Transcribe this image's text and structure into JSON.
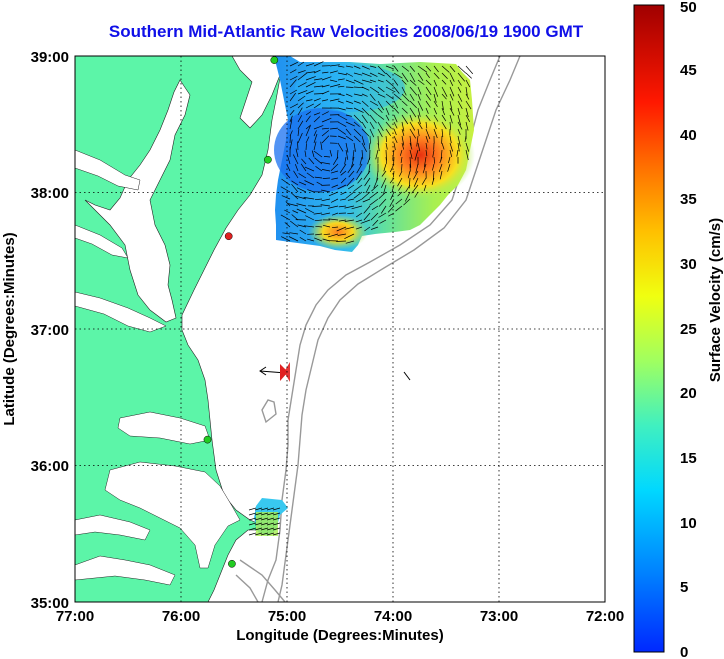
{
  "title": "Southern Mid-Atlantic Raw Velocities 2008/06/19 1900 GMT",
  "xlabel": "Longitude (Degrees:Minutes)",
  "ylabel": "Latitude (Degrees:Minutes)",
  "colorbar_label": "Surface Velocity (cm/s)",
  "x_ticks": [
    "77:00",
    "76:00",
    "75:00",
    "74:00",
    "73:00",
    "72:00"
  ],
  "y_ticks": [
    "39:00",
    "38:00",
    "37:00",
    "36:00",
    "35:00"
  ],
  "colorbar_ticks": [
    "0",
    "5",
    "10",
    "15",
    "20",
    "25",
    "30",
    "35",
    "40",
    "45",
    "50"
  ],
  "colors": {
    "land": "#5cf5a8",
    "title": "#1010e8",
    "bathymetry": "#999999",
    "station": "#22cc22",
    "station_alert": "#e02020"
  },
  "map_data": {
    "lon_range": [
      -77,
      -72
    ],
    "lat_range": [
      35,
      39
    ],
    "velocity_range_cm_s": [
      0,
      50
    ],
    "grid": true,
    "stations": [
      {
        "lon": -75.12,
        "lat": 38.97,
        "status": "ok"
      },
      {
        "lon": -75.18,
        "lat": 38.24,
        "status": "ok"
      },
      {
        "lon": -75.55,
        "lat": 37.68,
        "status": "alert"
      },
      {
        "lon": -75.75,
        "lat": 36.19,
        "status": "ok"
      },
      {
        "lon": -75.52,
        "lat": 35.28,
        "status": "ok"
      }
    ],
    "reference_vector": {
      "lon": -75.02,
      "lat": 36.69,
      "label_direction": "west"
    }
  }
}
